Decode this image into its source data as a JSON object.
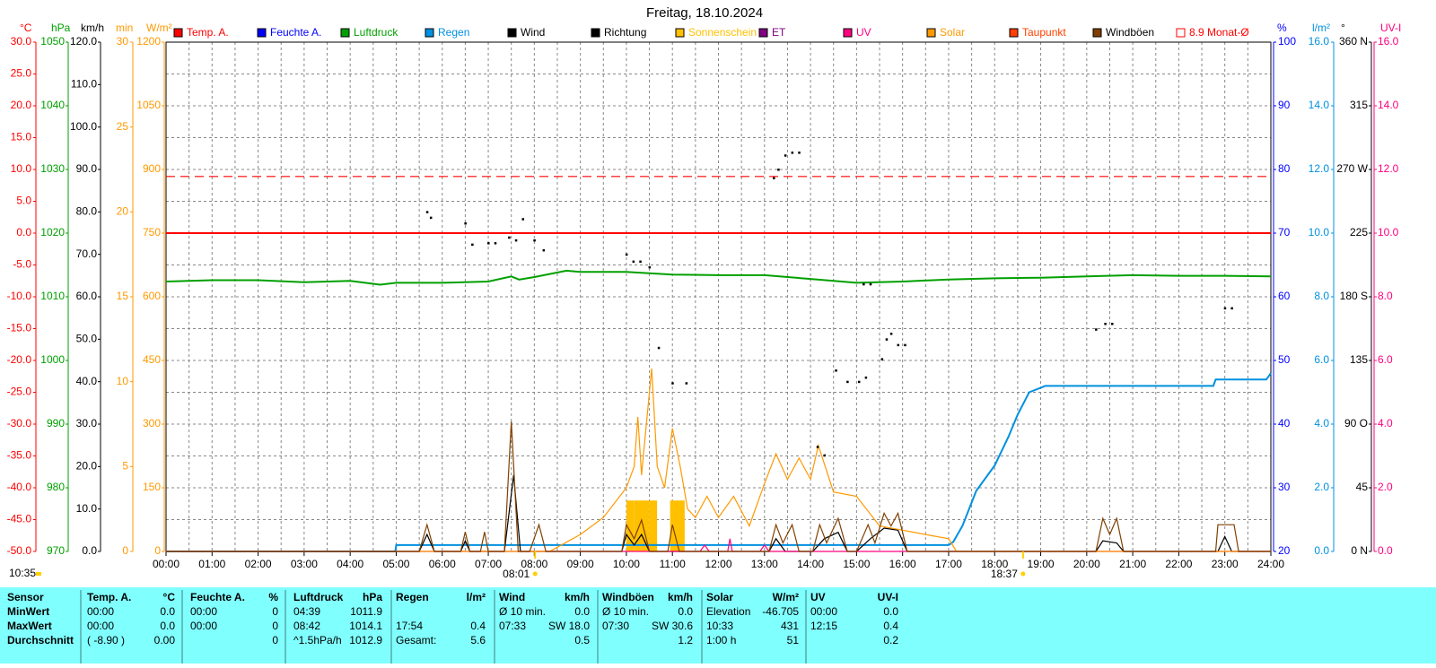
{
  "chart_data": {
    "type": "line",
    "title": "Freitag, 18.10.2024",
    "grid": true,
    "xlim": [
      0,
      24
    ],
    "xticks": [
      {
        "value": 0,
        "label": "00:00"
      },
      {
        "value": 1,
        "label": "01:00"
      },
      {
        "value": 2,
        "label": "02:00"
      },
      {
        "value": 3,
        "label": "03:00"
      },
      {
        "value": 4,
        "label": "04:00"
      },
      {
        "value": 5,
        "label": "05:00"
      },
      {
        "value": 6,
        "label": "06:00"
      },
      {
        "value": 7,
        "label": "07:00"
      },
      {
        "value": 8,
        "label": "08:00"
      },
      {
        "value": 9,
        "label": "09:00"
      },
      {
        "value": 10,
        "label": "10:00"
      },
      {
        "value": 11,
        "label": "11:00"
      },
      {
        "value": 12,
        "label": "12:00"
      },
      {
        "value": 13,
        "label": "13:00"
      },
      {
        "value": 14,
        "label": "14:00"
      },
      {
        "value": 15,
        "label": "15:00"
      },
      {
        "value": 16,
        "label": "16:00"
      },
      {
        "value": 17,
        "label": "17:00"
      },
      {
        "value": 18,
        "label": "18:00"
      },
      {
        "value": 19,
        "label": "19:00"
      },
      {
        "value": 20,
        "label": "20:00"
      },
      {
        "value": 21,
        "label": "21:00"
      },
      {
        "value": 22,
        "label": "22:00"
      },
      {
        "value": 23,
        "label": "23:00"
      },
      {
        "value": 24,
        "label": "24:00"
      }
    ],
    "x_minor_ticks": [
      0.5,
      1.5,
      2.5,
      3.5,
      4.5,
      5.5,
      6.5,
      7.5,
      8.5,
      9.5,
      10.5,
      11.5,
      12.5,
      13.5,
      14.5,
      15.5,
      16.5,
      17.5,
      18.5,
      19.5,
      20.5,
      21.5,
      22.5,
      23.5
    ],
    "axes": [
      {
        "unit": "°C",
        "color": "#ff0000",
        "ylim": [
          -50,
          30
        ],
        "yticks": [
          {
            "value": 30,
            "label": "30.0"
          },
          {
            "value": 25,
            "label": "25.0"
          },
          {
            "value": 20,
            "label": "20.0"
          },
          {
            "value": 15,
            "label": "15.0"
          },
          {
            "value": 10,
            "label": "10.0"
          },
          {
            "value": 5,
            "label": "5.0"
          },
          {
            "value": 0,
            "label": "0.0"
          },
          {
            "value": -5,
            "label": "-5.0"
          },
          {
            "value": -10,
            "label": "-10.0"
          },
          {
            "value": -15,
            "label": "-15.0"
          },
          {
            "value": -20,
            "label": "-20.0"
          },
          {
            "value": -25,
            "label": "-25.0"
          },
          {
            "value": -30,
            "label": "-30.0"
          },
          {
            "value": -35,
            "label": "-35.0"
          },
          {
            "value": -40,
            "label": "-40.0"
          },
          {
            "value": -45,
            "label": "-45.0"
          },
          {
            "value": -50,
            "label": "-50.0"
          }
        ]
      },
      {
        "unit": "hPa",
        "color": "#00a000",
        "ylim": [
          970,
          1050
        ],
        "yticks": [
          1050,
          1040,
          1030,
          1020,
          1010,
          1000,
          990,
          980,
          970
        ]
      },
      {
        "unit": "km/h",
        "color": "#000000",
        "ylim": [
          0,
          120
        ],
        "yticks": [
          {
            "value": 120,
            "label": "120.0"
          },
          {
            "value": 110,
            "label": "110.0"
          },
          {
            "value": 100,
            "label": "100.0"
          },
          {
            "value": 90,
            "label": "90.0"
          },
          {
            "value": 80,
            "label": "80.0"
          },
          {
            "value": 70,
            "label": "70.0"
          },
          {
            "value": 60,
            "label": "60.0"
          },
          {
            "value": 50,
            "label": "50.0"
          },
          {
            "value": 40,
            "label": "40.0"
          },
          {
            "value": 30,
            "label": "30.0"
          },
          {
            "value": 20,
            "label": "20.0"
          },
          {
            "value": 10,
            "label": "10.0"
          },
          {
            "value": 0,
            "label": "0.0"
          }
        ]
      },
      {
        "unit": "min",
        "color": "#ff9900",
        "ylim": [
          0,
          30
        ],
        "yticks": [
          30,
          25,
          20,
          15,
          10,
          5,
          0
        ]
      },
      {
        "unit": "W/m²",
        "color": "#ff9900",
        "ylim": [
          0,
          1200
        ],
        "yticks": [
          1200,
          1050,
          900,
          750,
          600,
          450,
          300,
          150,
          0
        ]
      },
      {
        "unit": "%",
        "color": "#0000ff",
        "ylim": [
          20,
          100
        ],
        "yticks": [
          100,
          90,
          80,
          70,
          60,
          50,
          40,
          30,
          20
        ]
      },
      {
        "unit": "l/m²",
        "color": "#0090e0",
        "ylim": [
          0,
          16
        ],
        "yticks": [
          {
            "value": 16,
            "label": "16.0"
          },
          {
            "value": 14,
            "label": "14.0"
          },
          {
            "value": 12,
            "label": "12.0"
          },
          {
            "value": 10,
            "label": "10.0"
          },
          {
            "value": 8,
            "label": "8.0"
          },
          {
            "value": 6,
            "label": "6.0"
          },
          {
            "value": 4,
            "label": "4.0"
          },
          {
            "value": 2,
            "label": "2.0"
          },
          {
            "value": 0,
            "label": "0.0"
          }
        ]
      },
      {
        "unit": "°",
        "color": "#000000",
        "ylim": [
          0,
          360
        ],
        "yticks": [
          {
            "value": 360,
            "label": "360 N"
          },
          315,
          {
            "value": 270,
            "label": "270 W"
          },
          225,
          {
            "value": 180,
            "label": "180 S"
          },
          135,
          {
            "value": 90,
            "label": "90 O"
          },
          45,
          {
            "value": 0,
            "label": "0 N"
          }
        ]
      },
      {
        "unit": "UV-I",
        "color": "#ff0080",
        "ylim": [
          0,
          16
        ],
        "yticks": [
          {
            "value": 16,
            "label": "16.0"
          },
          {
            "value": 14,
            "label": "14.0"
          },
          {
            "value": 12,
            "label": "12.0"
          },
          {
            "value": 10,
            "label": "10.0"
          },
          {
            "value": 8,
            "label": "8.0"
          },
          {
            "value": 6,
            "label": "6.0"
          },
          {
            "value": 4,
            "label": "4.0"
          },
          {
            "value": 2,
            "label": "2.0"
          },
          {
            "value": 0,
            "label": "0.0"
          }
        ]
      }
    ],
    "series": [
      {
        "name": "Temp. A.",
        "color": "#ff0000",
        "axis": "°C",
        "style": "line",
        "x": [
          0,
          24
        ],
        "values": [
          0,
          0
        ]
      },
      {
        "name": "Feuchte A.",
        "color": "#0000ff"
      },
      {
        "name": "Luftdruck",
        "color": "#00a000",
        "axis": "hPa",
        "style": "line",
        "x": [
          0,
          1,
          2,
          3,
          4,
          4.65,
          5,
          6,
          7,
          7.5,
          7.67,
          8,
          8.7,
          9,
          10,
          11,
          12,
          13,
          14,
          15,
          16,
          17,
          18,
          19,
          20,
          21,
          22,
          23,
          24
        ],
        "values": [
          1012.4,
          1012.6,
          1012.6,
          1012.3,
          1012.5,
          1011.9,
          1012.2,
          1012.2,
          1012.4,
          1013.2,
          1012.7,
          1013.1,
          1014.1,
          1013.9,
          1013.9,
          1013.5,
          1013.4,
          1013.4,
          1012.8,
          1012.2,
          1012.4,
          1012.7,
          1012.9,
          1013.0,
          1013.2,
          1013.4,
          1013.3,
          1013.3,
          1013.2
        ]
      },
      {
        "name": "Regen",
        "color": "#0090e0",
        "axis": "l/m²",
        "style": "line",
        "x": [
          0,
          4.98,
          5,
          17,
          17.1,
          17.3,
          17.6,
          18,
          18.3,
          18.5,
          18.75,
          19.1,
          22.75,
          22.8,
          23.9,
          24
        ],
        "values": [
          0,
          0,
          0.2,
          0.2,
          0.3,
          0.8,
          1.9,
          2.7,
          3.6,
          4.3,
          5.0,
          5.2,
          5.2,
          5.4,
          5.4,
          5.6
        ]
      },
      {
        "name": "Wind",
        "color": "#000000",
        "axis": "km/h",
        "style": "line",
        "x": [
          0,
          5.5,
          5.67,
          5.83,
          6.4,
          6.5,
          6.6,
          7.35,
          7.55,
          7.7,
          9.9,
          10,
          10.17,
          10.33,
          10.5,
          13.1,
          13.25,
          13.45,
          14.05,
          14.3,
          14.6,
          14.8,
          15,
          15.3,
          15.6,
          15.9,
          16.1,
          20.2,
          20.35,
          20.65,
          20.8,
          22.85,
          23,
          23.15,
          24
        ],
        "values": [
          0,
          0,
          4,
          0,
          0,
          2.5,
          0,
          0,
          18.0,
          0,
          0,
          4,
          1.5,
          4,
          0,
          0,
          3,
          0,
          0,
          3,
          4.5,
          0,
          0,
          3,
          5.5,
          5,
          0,
          0,
          2.5,
          2,
          0,
          0,
          3.5,
          0,
          0
        ]
      },
      {
        "name": "Richtung",
        "color": "#000000",
        "axis": "°",
        "style": "dots",
        "x": [
          5.67,
          5.75,
          6.5,
          6.65,
          7,
          7.15,
          7.45,
          7.75,
          7.6,
          8,
          8.2,
          10,
          10.15,
          10.3,
          10.5,
          10.7,
          11,
          11.3,
          13.2,
          13.3,
          13.45,
          13.6,
          13.75,
          14.15,
          14.3,
          14.55,
          14.8,
          15.05,
          15.2,
          15.15,
          15.3,
          15.55,
          15.65,
          15.75,
          15.9,
          16.05,
          20.2,
          20.4,
          20.55,
          23.0,
          23.15
        ],
        "values": [
          240,
          236,
          232,
          217,
          218,
          218,
          222,
          235,
          220,
          220,
          213,
          210,
          205,
          205,
          201,
          144,
          119,
          119,
          264,
          270,
          280,
          282,
          282,
          74,
          68,
          128,
          120,
          120,
          123,
          189,
          189,
          136,
          150,
          154,
          146,
          146,
          157,
          161,
          161,
          172,
          172
        ]
      },
      {
        "name": "Sonnenschein",
        "color": "#ffc000",
        "axis": "min",
        "style": "bars",
        "x": [
          10,
          10.17,
          10.33,
          10.5,
          10.95,
          11.1
        ],
        "values": [
          3,
          3,
          3,
          3,
          3,
          3
        ]
      },
      {
        "name": "ET",
        "color": "#800080"
      },
      {
        "name": "UV",
        "color": "#ff0080",
        "axis": "UV-I",
        "style": "line",
        "x": [
          0,
          11.6,
          11.7,
          11.8,
          12.2,
          12.25,
          12.3,
          12.9,
          13,
          13.1,
          24
        ],
        "values": [
          0,
          0,
          0.2,
          0,
          0,
          0.4,
          0,
          0,
          0.2,
          0,
          0
        ]
      },
      {
        "name": "Solar",
        "color": "#ff9900",
        "axis": "W/m²",
        "style": "line",
        "x": [
          0,
          8.33,
          8.5,
          9,
          9.5,
          10,
          10.17,
          10.25,
          10.33,
          10.55,
          10.67,
          10.83,
          11,
          11.17,
          11.33,
          11.5,
          11.75,
          12,
          12.33,
          12.67,
          13,
          13.25,
          13.5,
          13.75,
          14,
          14.17,
          14.5,
          15,
          15.5,
          16,
          16.5,
          17,
          17.17,
          24
        ],
        "values": [
          0,
          0,
          10,
          40,
          80,
          150,
          200,
          317,
          180,
          431,
          200,
          150,
          290,
          200,
          100,
          80,
          130,
          80,
          130,
          60,
          160,
          230,
          170,
          220,
          170,
          250,
          140,
          130,
          60,
          50,
          40,
          30,
          0,
          0
        ]
      },
      {
        "name": "Taupunkt",
        "color": "#ff4000"
      },
      {
        "name": "Windböen",
        "color": "#804000",
        "axis": "km/h",
        "style": "line",
        "x": [
          0,
          5.5,
          5.67,
          5.83,
          6.4,
          6.5,
          6.6,
          6.83,
          6.92,
          7,
          7.35,
          7.5,
          7.65,
          7.9,
          8.1,
          8.25,
          9.9,
          10,
          10.17,
          10.33,
          10.5,
          10.9,
          11,
          11.15,
          13.1,
          13.25,
          13.4,
          13.6,
          13.75,
          14.05,
          14.2,
          14.35,
          14.6,
          14.8,
          15,
          15.25,
          15.4,
          15.6,
          15.75,
          15.9,
          16.1,
          20.2,
          20.35,
          20.5,
          20.65,
          20.8,
          22.8,
          22.85,
          23.2,
          23.3,
          24
        ],
        "values": [
          0,
          0,
          6.3,
          0,
          0,
          4.6,
          0,
          0,
          4.6,
          0,
          0,
          30.6,
          0,
          0,
          6.3,
          0,
          0,
          6.3,
          3,
          7.4,
          0,
          0,
          6.3,
          0,
          0,
          6.3,
          2,
          6.3,
          0,
          0,
          6.3,
          2,
          7.8,
          0,
          0,
          6.3,
          2,
          9,
          6,
          9,
          0,
          0,
          7.8,
          4,
          7.8,
          0,
          0,
          6.3,
          6.3,
          0,
          0
        ]
      },
      {
        "name": "8.9 Monat-Ø",
        "color": "#ff0000",
        "axis": "°C",
        "style": "dashed",
        "x": [
          0,
          24
        ],
        "values": [
          8.9,
          8.9
        ]
      }
    ],
    "annotations": [
      {
        "x": 8.017,
        "label": "08:01"
      },
      {
        "x": 18.617,
        "label": "18:37"
      }
    ],
    "corner_note": "10:35"
  },
  "table": {
    "rows": [
      [
        "Sensor",
        "Temp. A.",
        "°C",
        "Feuchte A.",
        "%",
        "Luftdruck",
        "hPa",
        "Regen",
        "l/m²",
        "Wind",
        "km/h",
        "Windböen",
        "km/h",
        "Solar",
        "W/m²",
        "UV",
        "UV-I"
      ],
      [
        "MinWert",
        "00:00",
        "0.0",
        "00:00",
        "0",
        "04:39",
        "1011.9",
        null,
        null,
        "Ø 10 min.",
        "0.0",
        "Ø 10 min.",
        "0.0",
        "Elevation",
        "-46.705",
        "00:00",
        "0.0"
      ],
      [
        "MaxWert",
        "00:00",
        "0.0",
        "00:00",
        "0",
        "08:42",
        "1014.1",
        "17:54",
        "0.4",
        "07:33",
        "SW 18.0",
        "07:30",
        "SW 30.6",
        "10:33",
        "431",
        "12:15",
        "0.4"
      ],
      [
        "Durchschnitt",
        "( -8.90 )",
        "0.00",
        null,
        "0",
        "^1.5hPa/h",
        "1012.9",
        "Gesamt:",
        "5.6",
        null,
        "0.5",
        null,
        "1.2",
        "1:00 h",
        "51",
        null,
        "0.2"
      ]
    ]
  }
}
